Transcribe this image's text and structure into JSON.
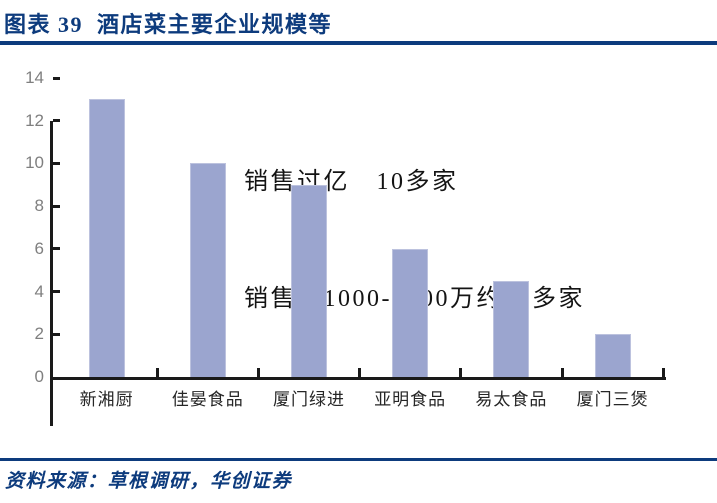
{
  "header": {
    "title": "图表 39  酒店菜主要企业规模等"
  },
  "chart_data": {
    "type": "bar",
    "categories": [
      "新湘厨",
      "佳晏食品",
      "厦门绿进",
      "亚明食品",
      "易太食品",
      "厦门三煲"
    ],
    "values": [
      13,
      10,
      9,
      6,
      4.5,
      2
    ],
    "title": "",
    "xlabel": "",
    "ylabel": "",
    "ylim": [
      0,
      14
    ],
    "ytick_step": 2,
    "yticks": [
      0,
      2,
      4,
      6,
      8,
      10,
      12,
      14
    ],
    "grid": false,
    "legend": false,
    "annotations": [
      "销售过亿　10多家",
      "销售额1000-5000万约30多家"
    ]
  },
  "footer": {
    "source": "资料来源：草根调研，华创证券"
  },
  "colors": {
    "accent_navy": "#0d3b7d",
    "bar_fill": "#9ba5cf",
    "bar_border": "#bcc2de",
    "axis": "#1a1a1a",
    "ytick_label": "#7f7f7f",
    "annotation_text": "#141414"
  }
}
